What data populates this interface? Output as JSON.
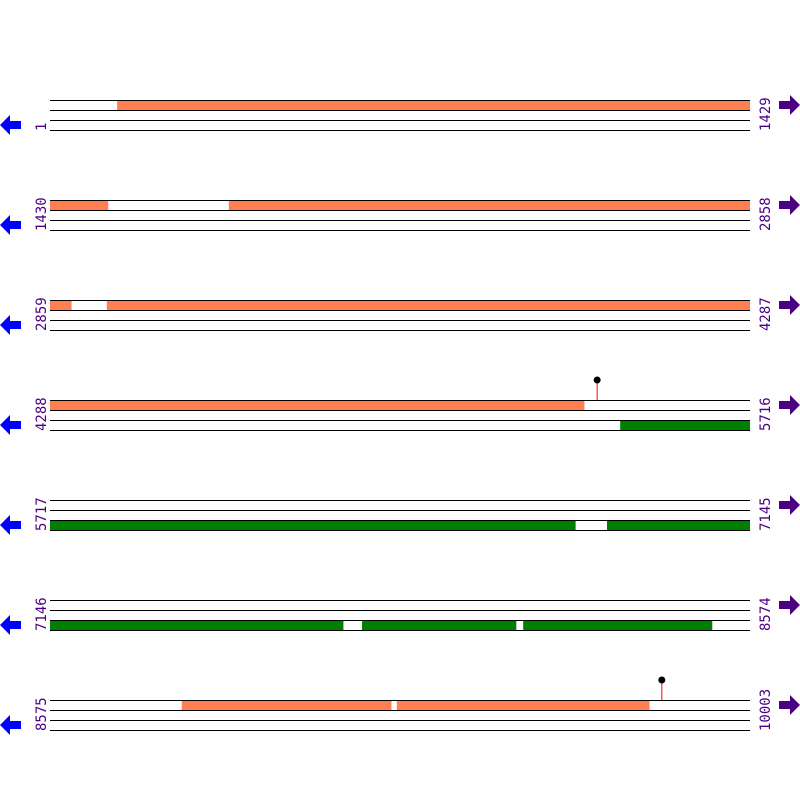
{
  "sequence": {
    "length": 10003,
    "bases_per_row": 1429
  },
  "rows": [
    {
      "start": "1",
      "end": "1429"
    },
    {
      "start": "1430",
      "end": "2858"
    },
    {
      "start": "2859",
      "end": "4287"
    },
    {
      "start": "4288",
      "end": "5716"
    },
    {
      "start": "5717",
      "end": "7145"
    },
    {
      "start": "7146",
      "end": "8574"
    },
    {
      "start": "8575",
      "end": "10003"
    }
  ],
  "features": [
    {
      "strand": "forward",
      "start": 138,
      "end": 1548
    },
    {
      "strand": "forward",
      "start": 1795,
      "end": 2902
    },
    {
      "strand": "forward",
      "start": 2975,
      "end": 5378
    },
    {
      "strand": "forward",
      "start": 8844,
      "end": 9271
    },
    {
      "strand": "forward",
      "start": 9283,
      "end": 9798
    },
    {
      "strand": "reverse",
      "start": 5452,
      "end": 6789
    },
    {
      "strand": "reverse",
      "start": 6854,
      "end": 7744
    },
    {
      "strand": "reverse",
      "start": 7783,
      "end": 8097
    },
    {
      "strand": "reverse",
      "start": 8112,
      "end": 8497
    }
  ],
  "markers": [
    {
      "position": 5405
    },
    {
      "position": 9824
    }
  ],
  "colors": {
    "forward": "#ff7f50",
    "reverse": "#008000",
    "label": "#4b0082",
    "left_arrow": "#0000ff",
    "right_arrow": "#4b0082",
    "marker_stem": "#ff0000",
    "marker_head": "#000000"
  }
}
